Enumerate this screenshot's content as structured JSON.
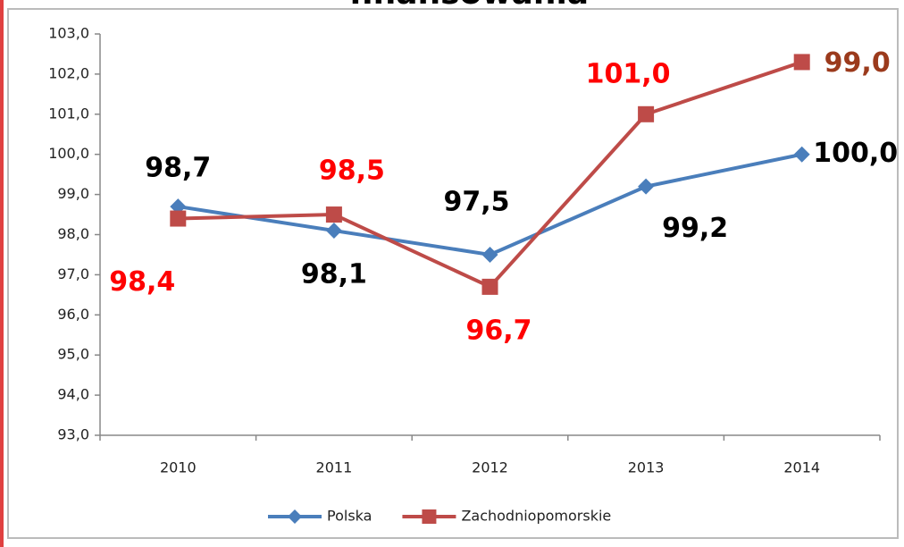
{
  "chart_data": {
    "type": "line",
    "title": "finansowania",
    "categories": [
      "2010",
      "2011",
      "2012",
      "2013",
      "2014"
    ],
    "series": [
      {
        "name": "Polska",
        "color": "#4a7ebb",
        "marker": "diamond",
        "label_color": "#000000",
        "values": [
          98.7,
          98.1,
          97.5,
          99.2,
          100.0
        ],
        "value_labels": [
          "98,7",
          "98,1",
          "97,5",
          "99,2",
          "100,0"
        ]
      },
      {
        "name": "Zachodniopomorskie",
        "color": "#be4b48",
        "marker": "square",
        "label_color": "#ff0000",
        "values": [
          98.4,
          98.5,
          96.7,
          101.0,
          102.3
        ],
        "value_labels": [
          "98,4",
          "98,5",
          "96,7",
          "101,0",
          null
        ]
      }
    ],
    "annotations": [
      {
        "text": "99,0",
        "color": "#9b3a1c"
      }
    ],
    "ylim": [
      93,
      103
    ],
    "yticks": [
      {
        "value": 93,
        "label": "93,0"
      },
      {
        "value": 94,
        "label": "94,0"
      },
      {
        "value": 95,
        "label": "95,0"
      },
      {
        "value": 96,
        "label": "96,0"
      },
      {
        "value": 97,
        "label": "97,0"
      },
      {
        "value": 98,
        "label": "98,0"
      },
      {
        "value": 99,
        "label": "99,0"
      },
      {
        "value": 100,
        "label": "100,0"
      },
      {
        "value": 101,
        "label": "101,0"
      },
      {
        "value": 102,
        "label": "102,0"
      },
      {
        "value": 103,
        "label": "103,0"
      }
    ],
    "grid": false,
    "legend": "bottom"
  }
}
